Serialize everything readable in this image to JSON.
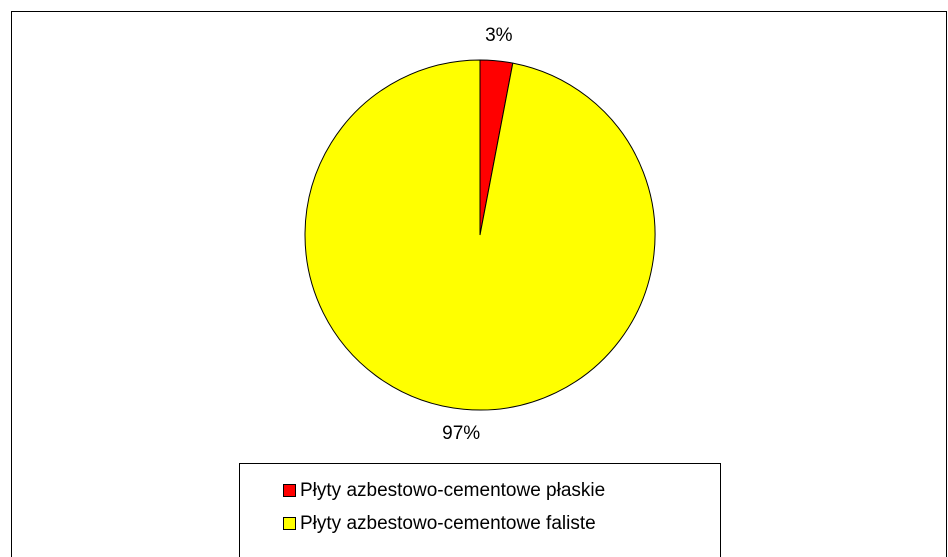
{
  "chart_data": {
    "type": "pie",
    "categories": [
      "Płyty azbestowo-cementowe płaskie",
      "Płyty azbestowo-cementowe faliste"
    ],
    "values": [
      3,
      97
    ],
    "value_labels": [
      "3%",
      "97%"
    ],
    "colors": [
      "#ff0000",
      "#ffff00"
    ],
    "legend": "bottom"
  }
}
